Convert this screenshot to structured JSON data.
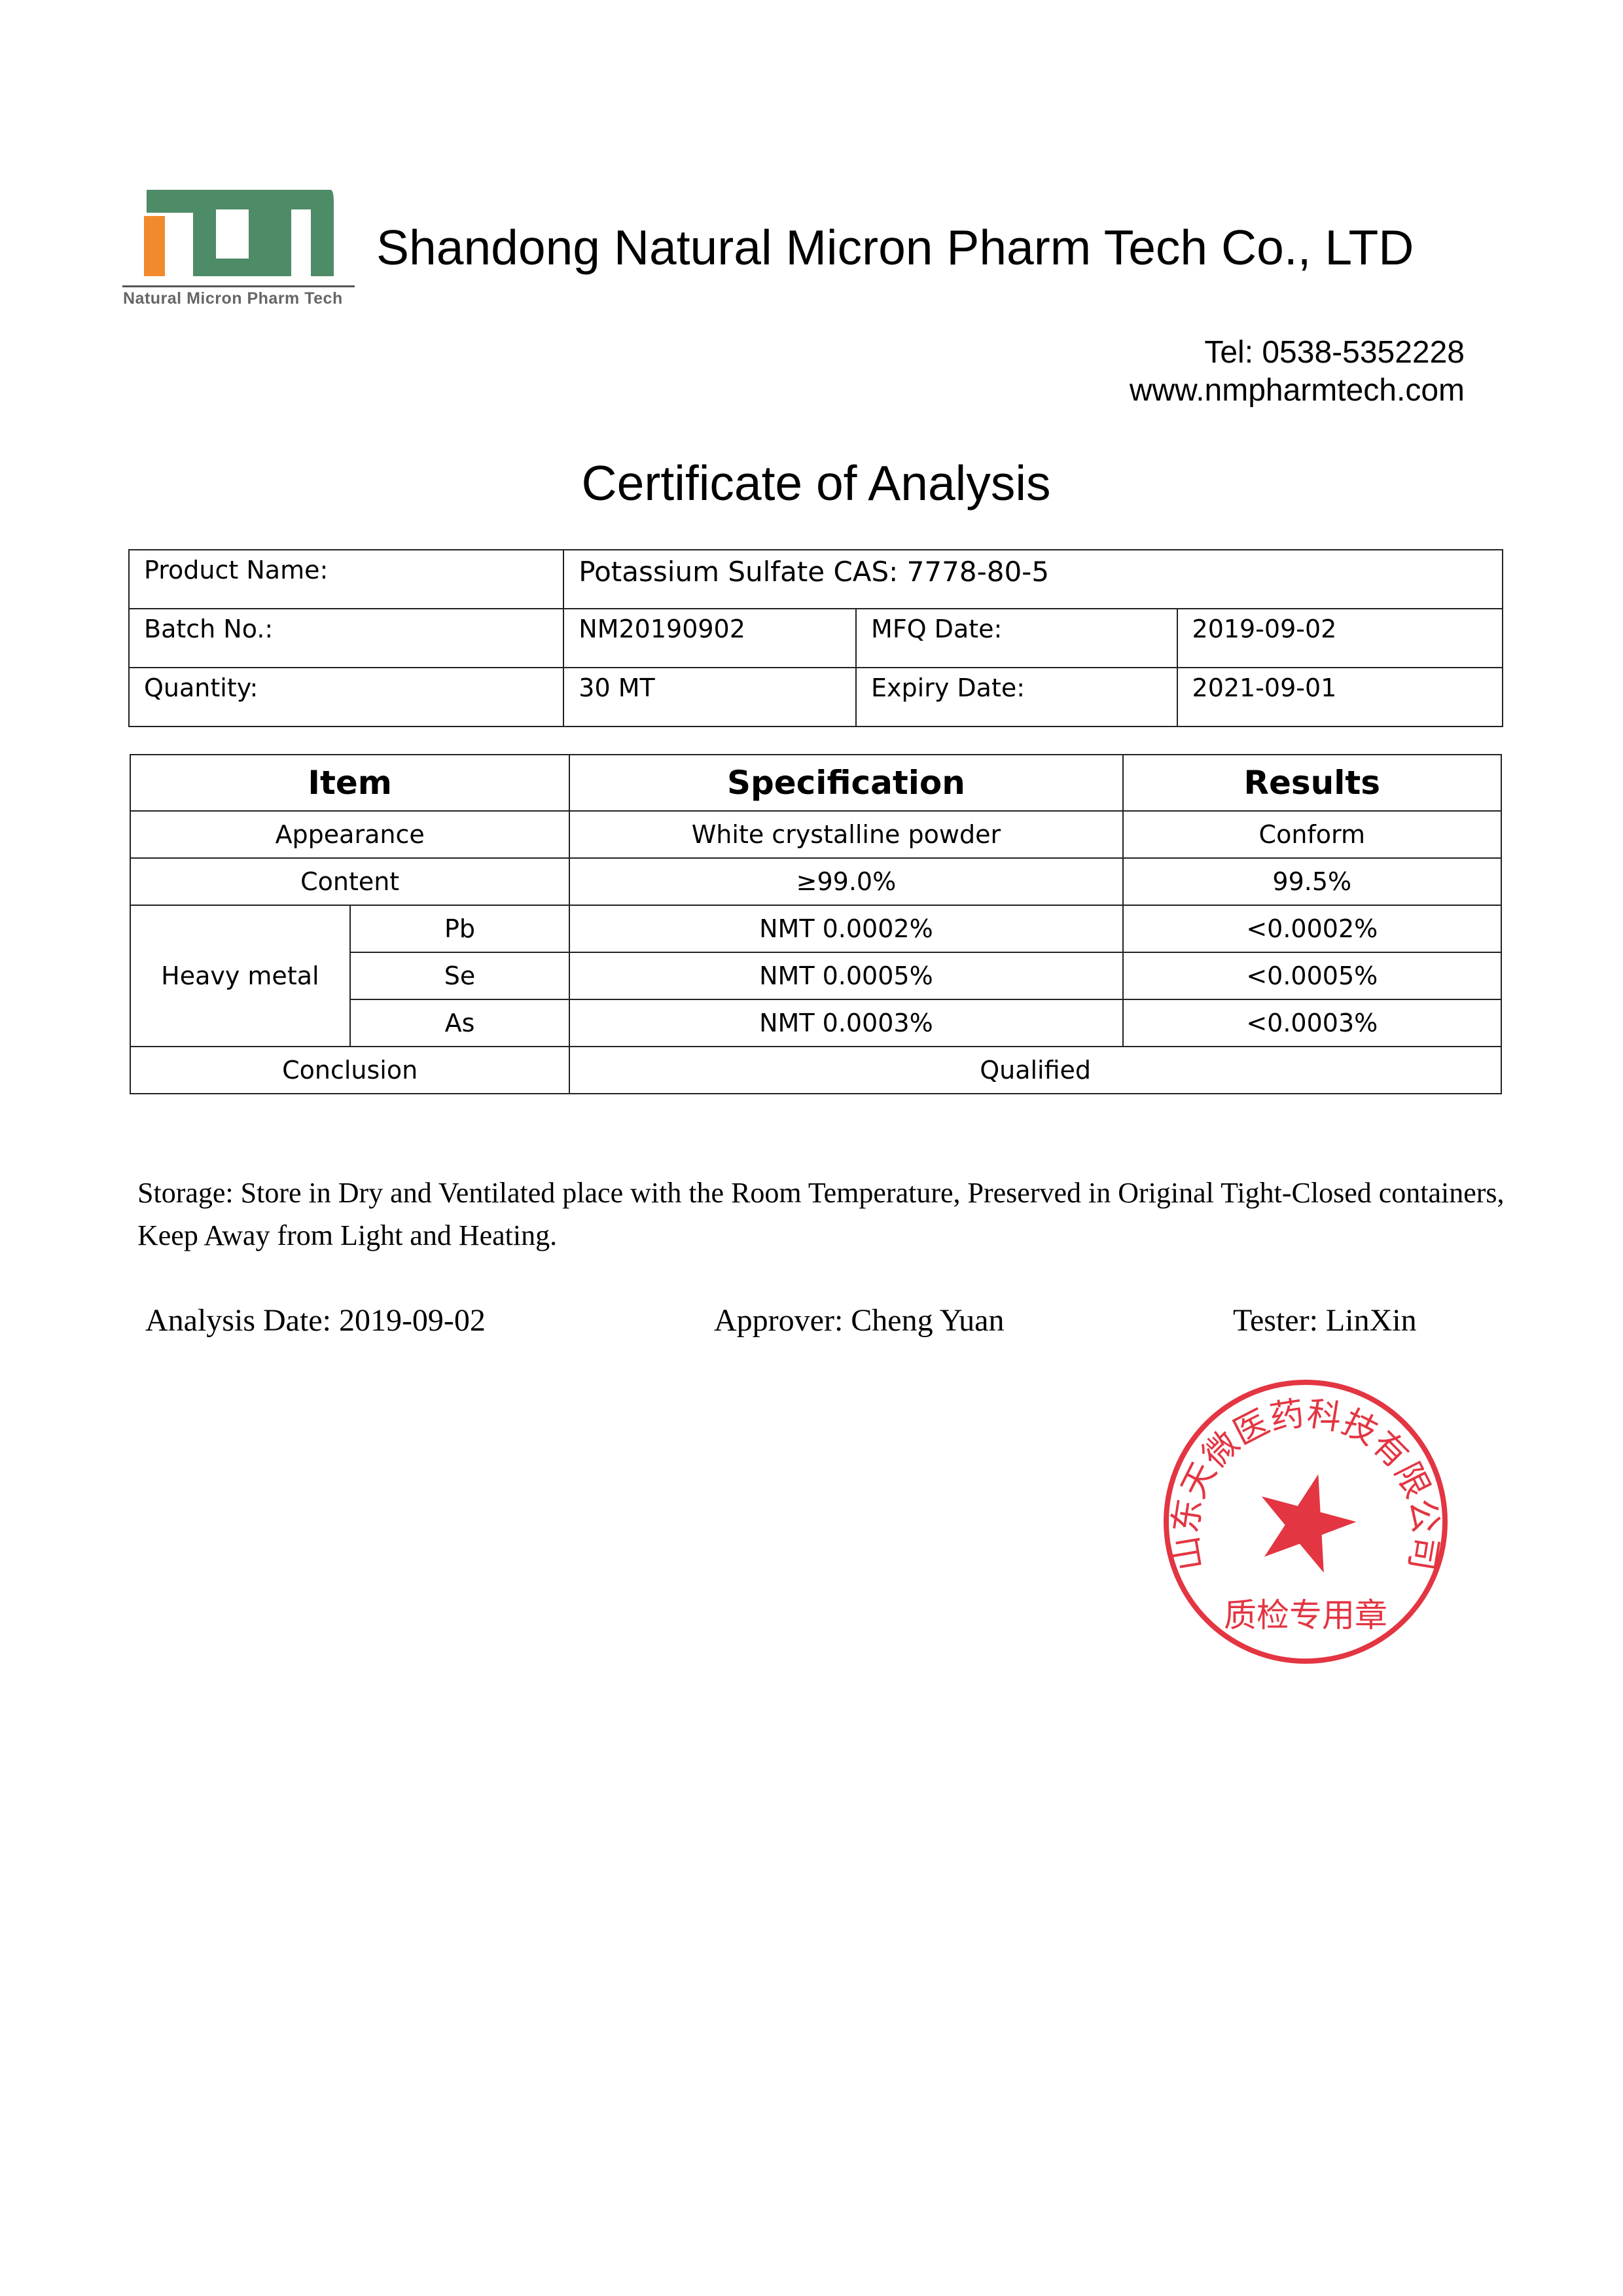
{
  "header": {
    "logo_text": "Natural Micron Pharm Tech",
    "company_name": "Shandong Natural Micron Pharm Tech Co., LTD",
    "tel": "Tel: 0538-5352228",
    "website": "www.nmpharmtech.com",
    "colors": {
      "logo_green": "#4e8b67",
      "logo_orange": "#f08a2c"
    }
  },
  "title": "Certificate of Analysis",
  "info": {
    "product_label": "Product Name:",
    "product_value": "Potassium Sulfate  CAS: 7778-80-5",
    "batch_label": "Batch No.:",
    "batch_value": "NM20190902",
    "mfq_label": "MFQ Date:",
    "mfq_value": "2019-09-02",
    "quantity_label": "Quantity:",
    "quantity_value": "30 MT",
    "expiry_label": "Expiry Date:",
    "expiry_value": "2021-09-01"
  },
  "results": {
    "headers": [
      "Item",
      "Specification",
      "Results"
    ],
    "appearance": {
      "item": "Appearance",
      "spec": "White crystalline powder",
      "result": "Conform"
    },
    "content": {
      "item": "Content",
      "spec": "≥99.0%",
      "result": "99.5%"
    },
    "heavy_metal_label": "Heavy metal",
    "metals": [
      {
        "item": "Pb",
        "spec": "NMT 0.0002%",
        "result": "<0.0002%"
      },
      {
        "item": "Se",
        "spec": "NMT 0.0005%",
        "result": "<0.0005%"
      },
      {
        "item": "As",
        "spec": "NMT 0.0003%",
        "result": "<0.0003%"
      }
    ],
    "conclusion_label": "Conclusion",
    "conclusion_value": "Qualified"
  },
  "storage": "Storage: Store in Dry and Ventilated place with the Room Temperature, Preserved in Original Tight-Closed containers, Keep Away from Light and Heating.",
  "signatures": {
    "analysis_date": "Analysis Date: 2019-09-02",
    "approver": "Approver: Cheng Yuan",
    "tester": "Tester: LinXin"
  },
  "stamp": {
    "outer_text": "山东天微医药科技有限公司",
    "inner_text": "质检专用章",
    "color": "#e0202e"
  }
}
